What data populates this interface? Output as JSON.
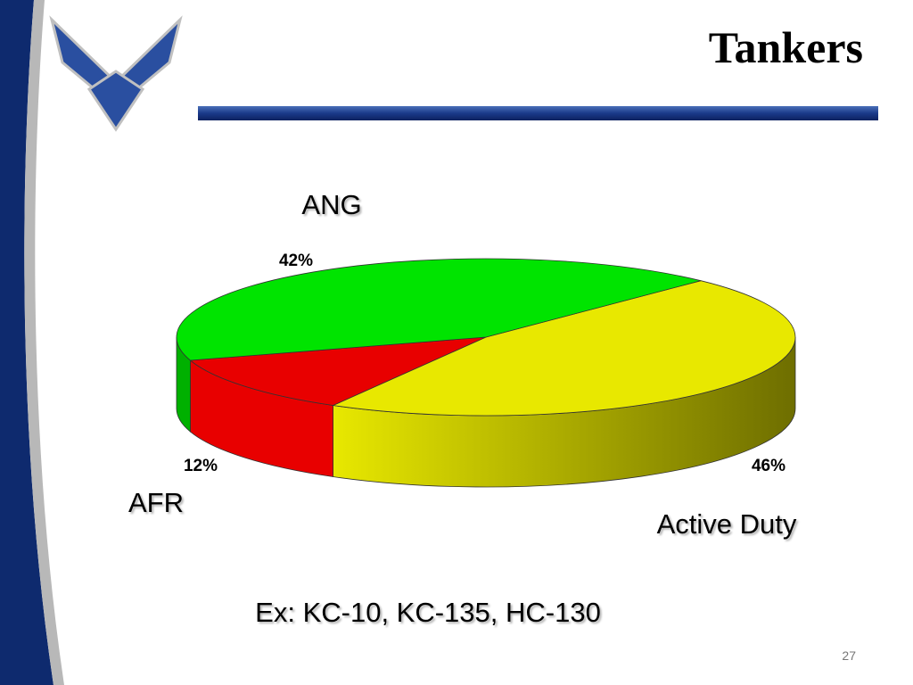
{
  "chart_data": {
    "type": "pie",
    "title": "Tankers",
    "categories": [
      "ANG",
      "AFR",
      "Active Duty"
    ],
    "values": [
      42,
      12,
      46
    ],
    "value_labels": [
      "42%",
      "12%",
      "46%"
    ],
    "colors": [
      "#00e400",
      "#e80000",
      "#e8e800"
    ]
  },
  "slide": {
    "note": "Ex:  KC-10, KC-135, HC-130",
    "page_number": "27"
  }
}
